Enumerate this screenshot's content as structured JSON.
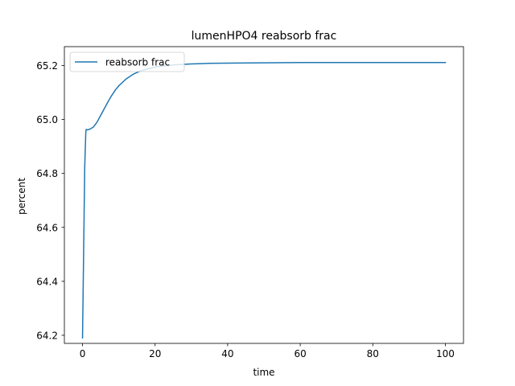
{
  "chart_data": {
    "type": "line",
    "title": "lumenHPO4 reabsorb frac",
    "xlabel": "time",
    "ylabel": "percent",
    "xlim": [
      -5,
      105
    ],
    "ylim": [
      64.17,
      65.27
    ],
    "xticks": [
      0,
      20,
      40,
      60,
      80,
      100
    ],
    "xtick_labels": [
      "0",
      "20",
      "40",
      "60",
      "80",
      "100"
    ],
    "yticks": [
      64.2,
      64.4,
      64.6,
      64.8,
      65.0,
      65.2
    ],
    "ytick_labels": [
      "64.2",
      "64.4",
      "64.6",
      "64.8",
      "65.0",
      "65.2"
    ],
    "grid": false,
    "legend_position": "upper left",
    "series": [
      {
        "name": "reabsorb frac",
        "color": "#1f77b4",
        "x": [
          0,
          0.3,
          0.6,
          0.9,
          1.0,
          1.2,
          1.5,
          2,
          3,
          4,
          5,
          6,
          7,
          8,
          9,
          10,
          12,
          14,
          16,
          18,
          20,
          22,
          25,
          30,
          35,
          40,
          50,
          60,
          70,
          80,
          90,
          100
        ],
        "y": [
          64.19,
          64.5,
          64.82,
          64.95,
          64.963,
          64.962,
          64.962,
          64.964,
          64.972,
          64.99,
          65.015,
          65.04,
          65.065,
          65.088,
          65.108,
          65.125,
          65.15,
          65.168,
          65.18,
          65.188,
          65.194,
          65.198,
          65.202,
          65.206,
          65.208,
          65.209,
          65.21,
          65.211,
          65.211,
          65.211,
          65.211,
          65.211
        ]
      }
    ]
  }
}
